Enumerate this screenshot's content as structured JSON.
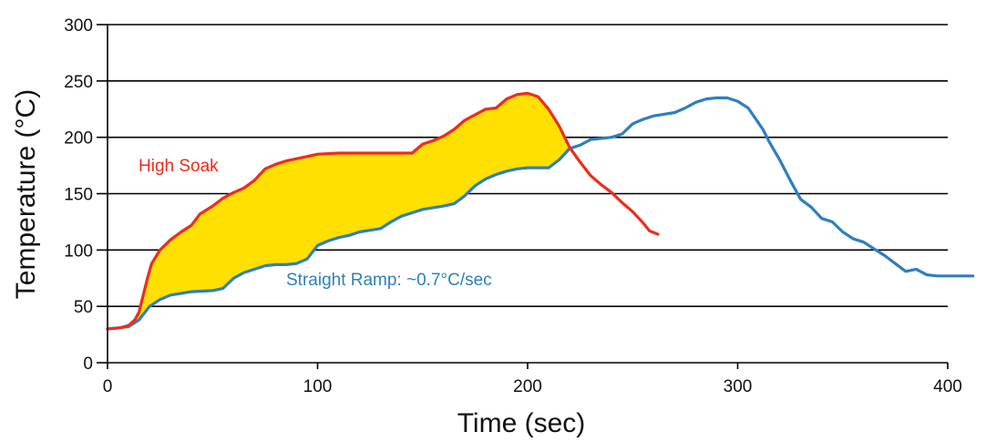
{
  "chart_data": {
    "type": "line",
    "title": "",
    "xlabel": "Time (sec)",
    "ylabel": "Temperature (°C)",
    "xlim": [
      0,
      400
    ],
    "ylim": [
      0,
      300
    ],
    "xticks": [
      "0",
      "100",
      "200",
      "300",
      "400"
    ],
    "yticks": [
      "0",
      "50",
      "100",
      "150",
      "200",
      "250",
      "300"
    ],
    "grid": "horizontal",
    "fill_between": {
      "upper": "High Soak",
      "lower": "Straight Ramp: ~0.7°C/sec",
      "color": "#ffe000",
      "x_range": [
        0,
        220
      ]
    },
    "series": [
      {
        "name": "High Soak",
        "color": "#ee2c1c",
        "points": [
          [
            0,
            30
          ],
          [
            6,
            31
          ],
          [
            10,
            33
          ],
          [
            13,
            38
          ],
          [
            15,
            45
          ],
          [
            17,
            60
          ],
          [
            19,
            75
          ],
          [
            21,
            88
          ],
          [
            25,
            100
          ],
          [
            30,
            109
          ],
          [
            35,
            116
          ],
          [
            40,
            122
          ],
          [
            44,
            132
          ],
          [
            50,
            139
          ],
          [
            55,
            146
          ],
          [
            60,
            151
          ],
          [
            65,
            155
          ],
          [
            70,
            162
          ],
          [
            75,
            172
          ],
          [
            80,
            176
          ],
          [
            85,
            179
          ],
          [
            90,
            181
          ],
          [
            95,
            183
          ],
          [
            100,
            185
          ],
          [
            110,
            186
          ],
          [
            120,
            186
          ],
          [
            130,
            186
          ],
          [
            145,
            186
          ],
          [
            150,
            194
          ],
          [
            155,
            197
          ],
          [
            160,
            201
          ],
          [
            165,
            207
          ],
          [
            170,
            215
          ],
          [
            175,
            220
          ],
          [
            180,
            225
          ],
          [
            185,
            226
          ],
          [
            190,
            234
          ],
          [
            195,
            238
          ],
          [
            200,
            239
          ],
          [
            205,
            236
          ],
          [
            210,
            225
          ],
          [
            215,
            210
          ],
          [
            220,
            191
          ],
          [
            225,
            178
          ],
          [
            230,
            166
          ],
          [
            235,
            158
          ],
          [
            240,
            151
          ],
          [
            245,
            142
          ],
          [
            250,
            134
          ],
          [
            255,
            124
          ],
          [
            258,
            117
          ],
          [
            262,
            114
          ]
        ]
      },
      {
        "name": "Straight Ramp: ~0.7°C/sec",
        "color": "#2e7fbd",
        "points": [
          [
            0,
            30
          ],
          [
            6,
            31
          ],
          [
            10,
            32
          ],
          [
            15,
            38
          ],
          [
            20,
            50
          ],
          [
            25,
            56
          ],
          [
            30,
            60
          ],
          [
            40,
            63
          ],
          [
            50,
            64
          ],
          [
            55,
            66
          ],
          [
            60,
            75
          ],
          [
            65,
            80
          ],
          [
            70,
            83
          ],
          [
            75,
            86
          ],
          [
            80,
            87
          ],
          [
            85,
            87
          ],
          [
            90,
            88
          ],
          [
            95,
            92
          ],
          [
            100,
            104
          ],
          [
            105,
            108
          ],
          [
            110,
            111
          ],
          [
            115,
            113
          ],
          [
            120,
            116
          ],
          [
            130,
            119
          ],
          [
            135,
            125
          ],
          [
            140,
            130
          ],
          [
            145,
            133
          ],
          [
            150,
            136
          ],
          [
            160,
            139
          ],
          [
            165,
            141
          ],
          [
            170,
            148
          ],
          [
            175,
            157
          ],
          [
            180,
            163
          ],
          [
            185,
            167
          ],
          [
            190,
            170
          ],
          [
            195,
            172
          ],
          [
            200,
            173
          ],
          [
            210,
            173
          ],
          [
            215,
            180
          ],
          [
            220,
            190
          ],
          [
            225,
            193
          ],
          [
            230,
            198
          ],
          [
            240,
            200
          ],
          [
            245,
            203
          ],
          [
            250,
            212
          ],
          [
            255,
            216
          ],
          [
            260,
            219
          ],
          [
            270,
            222
          ],
          [
            275,
            226
          ],
          [
            280,
            231
          ],
          [
            285,
            234
          ],
          [
            290,
            235
          ],
          [
            295,
            235
          ],
          [
            300,
            232
          ],
          [
            305,
            226
          ],
          [
            308,
            218
          ],
          [
            312,
            207
          ],
          [
            315,
            196
          ],
          [
            320,
            180
          ],
          [
            325,
            162
          ],
          [
            330,
            145
          ],
          [
            335,
            138
          ],
          [
            340,
            128
          ],
          [
            345,
            125
          ],
          [
            350,
            116
          ],
          [
            355,
            110
          ],
          [
            360,
            107
          ],
          [
            365,
            101
          ],
          [
            370,
            95
          ],
          [
            375,
            88
          ],
          [
            380,
            81
          ],
          [
            385,
            83
          ],
          [
            390,
            78
          ],
          [
            395,
            77
          ],
          [
            400,
            77
          ],
          [
            412,
            77
          ]
        ]
      }
    ],
    "annotations": [
      {
        "text": "High Soak",
        "color": "#ee2c1c"
      },
      {
        "text": "Straight Ramp: ~0.7°C/sec",
        "color": "#2e7fbd"
      }
    ]
  }
}
